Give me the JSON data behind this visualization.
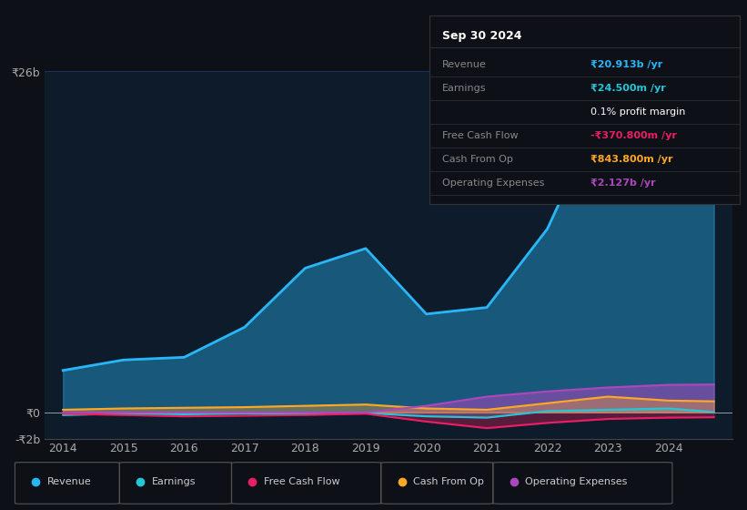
{
  "bg_color": "#0d1117",
  "plot_bg_color": "#0d1b2a",
  "grid_color": "#1e3050",
  "title": "Sep 30 2024",
  "years": [
    2014,
    2015,
    2016,
    2017,
    2018,
    2019,
    2020,
    2021,
    2022,
    2023,
    2024,
    2024.75
  ],
  "revenue": [
    3200,
    4000,
    4200,
    6500,
    11000,
    12500,
    7500,
    8000,
    14000,
    24000,
    21000,
    20913
  ],
  "earnings": [
    -200,
    -100,
    -150,
    -80,
    -100,
    -50,
    -300,
    -400,
    100,
    200,
    300,
    24.5
  ],
  "free_cash_flow": [
    -100,
    -200,
    -300,
    -250,
    -200,
    -100,
    -700,
    -1200,
    -800,
    -500,
    -400,
    -370.8
  ],
  "cash_from_op": [
    200,
    300,
    350,
    400,
    500,
    600,
    300,
    200,
    700,
    1200,
    900,
    843.8
  ],
  "operating_expenses": [
    0,
    0,
    0,
    0,
    0,
    0,
    500,
    1200,
    1600,
    1900,
    2100,
    2127
  ],
  "revenue_color": "#29b6f6",
  "earnings_color": "#26c6da",
  "free_cash_flow_color": "#e91e63",
  "cash_from_op_color": "#ffa726",
  "operating_expenses_color": "#ab47bc",
  "ylim": [
    -2000,
    26000
  ],
  "yticks": [
    -2000,
    0,
    26000
  ],
  "ytick_labels": [
    "-₹2b",
    "₹0",
    "₹26b"
  ],
  "x_tick_years": [
    2014,
    2015,
    2016,
    2017,
    2018,
    2019,
    2020,
    2021,
    2022,
    2023,
    2024
  ],
  "info_box_title": "Sep 30 2024",
  "info_rows": [
    {
      "label": "Revenue",
      "value": "₹20.913b /yr",
      "value_color": "#29b6f6"
    },
    {
      "label": "Earnings",
      "value": "₹24.500m /yr",
      "value_color": "#26c6da"
    },
    {
      "label": "",
      "value": "0.1% profit margin",
      "value_color": "#ffffff"
    },
    {
      "label": "Free Cash Flow",
      "value": "-₹370.800m /yr",
      "value_color": "#e91e63"
    },
    {
      "label": "Cash From Op",
      "value": "₹843.800m /yr",
      "value_color": "#ffa726"
    },
    {
      "label": "Operating Expenses",
      "value": "₹2.127b /yr",
      "value_color": "#ab47bc"
    }
  ],
  "legend_items": [
    {
      "label": "Revenue",
      "color": "#29b6f6"
    },
    {
      "label": "Earnings",
      "color": "#26c6da"
    },
    {
      "label": "Free Cash Flow",
      "color": "#e91e63"
    },
    {
      "label": "Cash From Op",
      "color": "#ffa726"
    },
    {
      "label": "Operating Expenses",
      "color": "#ab47bc"
    }
  ]
}
